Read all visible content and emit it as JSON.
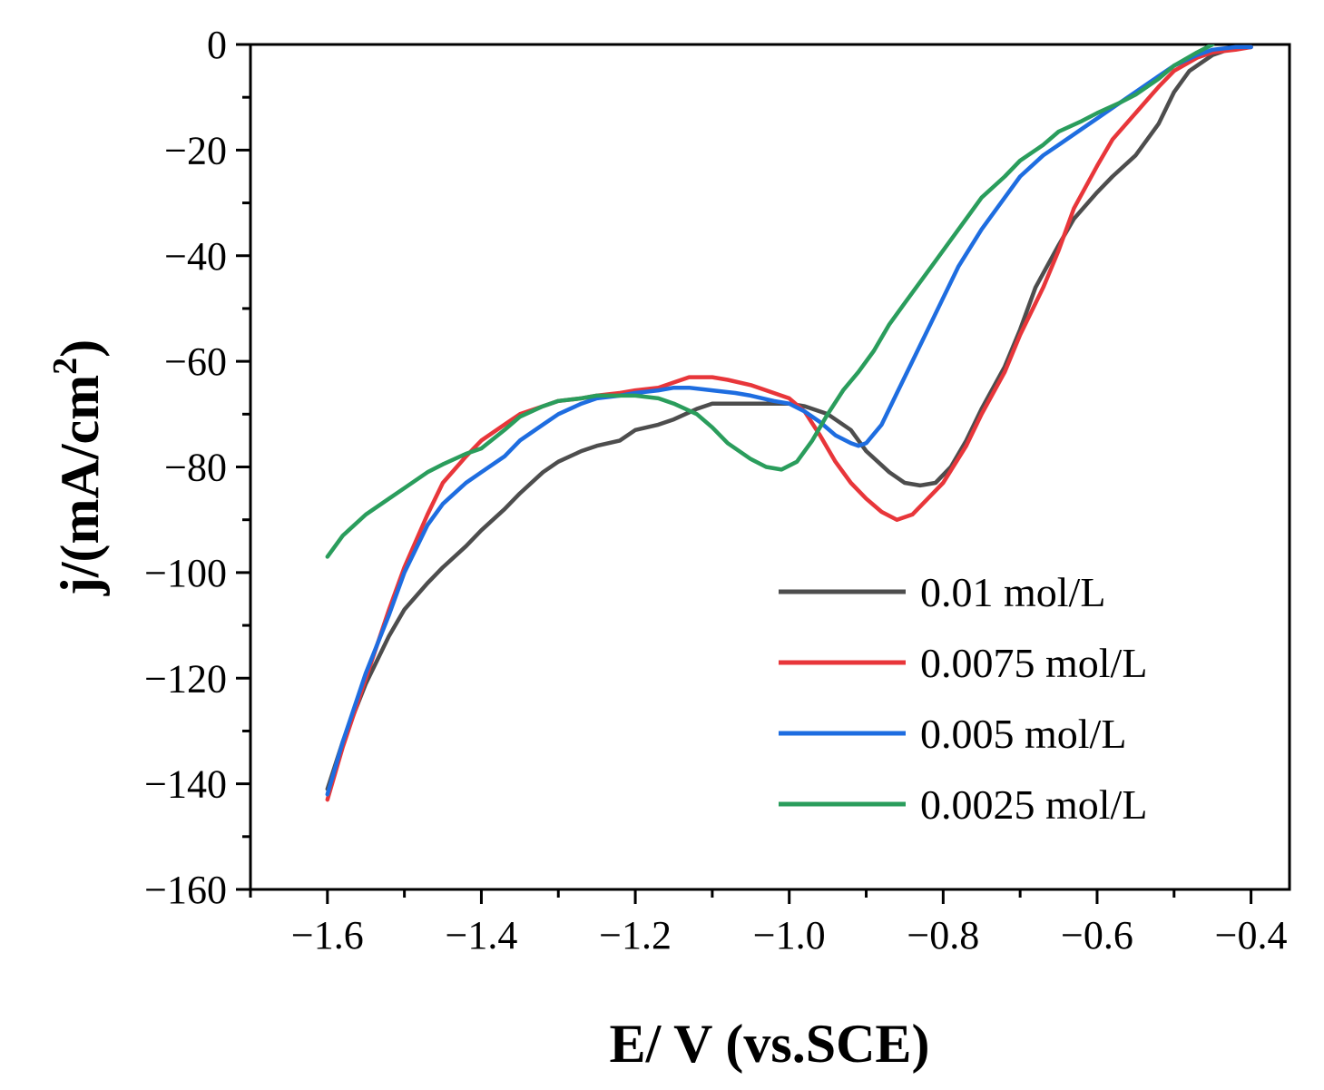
{
  "chart_data": {
    "type": "line",
    "title": "",
    "xlabel": "E/ V (vs.SCE)",
    "ylabel_main": "j/(mA/cm",
    "ylabel_sup": "2",
    "ylabel_close": ")",
    "xlim": [
      -1.7,
      -0.35
    ],
    "ylim": [
      -160,
      0
    ],
    "xticks": [
      -1.6,
      -1.4,
      -1.2,
      -1.0,
      -0.8,
      -0.6,
      -0.4
    ],
    "xtick_labels": [
      "−1.6",
      "−1.4",
      "−1.2",
      "−1.0",
      "−0.8",
      "−0.6",
      "−0.4"
    ],
    "yticks": [
      0,
      -20,
      -40,
      -60,
      -80,
      -100,
      -120,
      -140,
      -160
    ],
    "ytick_labels": [
      "0",
      "−20",
      "−40",
      "−60",
      "−80",
      "−100",
      "−120",
      "−140",
      "−160"
    ],
    "legend_position": "bottom-right",
    "series": [
      {
        "name": "0.01 mol/L",
        "color": "#4d4d4d",
        "x": [
          -1.6,
          -1.58,
          -1.55,
          -1.52,
          -1.5,
          -1.47,
          -1.45,
          -1.42,
          -1.4,
          -1.37,
          -1.35,
          -1.32,
          -1.3,
          -1.27,
          -1.25,
          -1.22,
          -1.2,
          -1.17,
          -1.15,
          -1.12,
          -1.1,
          -1.07,
          -1.05,
          -1.02,
          -1.0,
          -0.98,
          -0.95,
          -0.92,
          -0.9,
          -0.87,
          -0.85,
          -0.83,
          -0.81,
          -0.79,
          -0.77,
          -0.75,
          -0.72,
          -0.7,
          -0.68,
          -0.65,
          -0.63,
          -0.6,
          -0.58,
          -0.55,
          -0.52,
          -0.5,
          -0.48,
          -0.45,
          -0.43,
          -0.41,
          -0.4
        ],
        "y": [
          -141,
          -132,
          -121,
          -112,
          -107,
          -102,
          -99,
          -95,
          -92,
          -88,
          -85,
          -81,
          -79,
          -77,
          -76,
          -75,
          -73,
          -72,
          -71,
          -69,
          -68,
          -68,
          -68,
          -68,
          -68,
          -68.5,
          -70,
          -73,
          -77,
          -81,
          -83,
          -83.5,
          -83,
          -80,
          -75,
          -69,
          -61,
          -54,
          -46,
          -38,
          -33,
          -28,
          -25,
          -21,
          -15,
          -9,
          -5,
          -2,
          -1,
          -0.5,
          -0.5
        ]
      },
      {
        "name": "0.0075 mol/L",
        "color": "#e8363a",
        "x": [
          -1.6,
          -1.58,
          -1.55,
          -1.52,
          -1.5,
          -1.47,
          -1.45,
          -1.42,
          -1.4,
          -1.37,
          -1.35,
          -1.32,
          -1.3,
          -1.27,
          -1.25,
          -1.22,
          -1.2,
          -1.17,
          -1.15,
          -1.13,
          -1.1,
          -1.08,
          -1.05,
          -1.02,
          -1.0,
          -0.98,
          -0.96,
          -0.94,
          -0.92,
          -0.9,
          -0.88,
          -0.86,
          -0.84,
          -0.82,
          -0.8,
          -0.77,
          -0.75,
          -0.72,
          -0.7,
          -0.67,
          -0.65,
          -0.63,
          -0.6,
          -0.58,
          -0.55,
          -0.52,
          -0.5,
          -0.47,
          -0.45,
          -0.42,
          -0.4
        ],
        "y": [
          -143,
          -133,
          -120,
          -107,
          -99,
          -89,
          -83,
          -78,
          -75,
          -72,
          -70,
          -68.5,
          -67.5,
          -67,
          -66.5,
          -66,
          -65.5,
          -65,
          -64,
          -63,
          -63,
          -63.5,
          -64.5,
          -66,
          -67,
          -69.5,
          -74,
          -79,
          -83,
          -86,
          -88.5,
          -90,
          -89,
          -86,
          -83,
          -76,
          -70,
          -62,
          -55,
          -46,
          -39,
          -31,
          -23,
          -18,
          -13,
          -8,
          -5,
          -2.5,
          -1.5,
          -1,
          -0.5
        ]
      },
      {
        "name": "0.005 mol/L",
        "color": "#1e6de0",
        "x": [
          -1.6,
          -1.58,
          -1.55,
          -1.52,
          -1.5,
          -1.47,
          -1.45,
          -1.42,
          -1.4,
          -1.37,
          -1.35,
          -1.32,
          -1.3,
          -1.27,
          -1.25,
          -1.22,
          -1.2,
          -1.17,
          -1.15,
          -1.13,
          -1.1,
          -1.07,
          -1.05,
          -1.02,
          -1.0,
          -0.98,
          -0.96,
          -0.94,
          -0.92,
          -0.91,
          -0.9,
          -0.88,
          -0.86,
          -0.84,
          -0.82,
          -0.8,
          -0.78,
          -0.75,
          -0.72,
          -0.7,
          -0.67,
          -0.65,
          -0.62,
          -0.6,
          -0.57,
          -0.55,
          -0.52,
          -0.5,
          -0.47,
          -0.45,
          -0.42,
          -0.4
        ],
        "y": [
          -142,
          -132,
          -119,
          -108,
          -100,
          -91,
          -87,
          -83,
          -81,
          -78,
          -75,
          -72,
          -70,
          -68,
          -67,
          -66.5,
          -66,
          -65.5,
          -65,
          -65,
          -65.5,
          -66,
          -66.5,
          -67.5,
          -68,
          -69.5,
          -71.5,
          -74,
          -75.5,
          -76,
          -75.5,
          -72,
          -66,
          -60,
          -54,
          -48,
          -42,
          -35,
          -29,
          -25,
          -21,
          -19,
          -16,
          -14,
          -11,
          -9,
          -6,
          -4,
          -2,
          -1,
          -0.5,
          -0.5
        ]
      },
      {
        "name": "0.0025 mol/L",
        "color": "#2a9d5c",
        "x": [
          -1.6,
          -1.58,
          -1.55,
          -1.52,
          -1.5,
          -1.47,
          -1.45,
          -1.42,
          -1.4,
          -1.37,
          -1.35,
          -1.32,
          -1.3,
          -1.27,
          -1.25,
          -1.22,
          -1.2,
          -1.17,
          -1.15,
          -1.12,
          -1.1,
          -1.08,
          -1.05,
          -1.03,
          -1.01,
          -0.99,
          -0.97,
          -0.95,
          -0.93,
          -0.91,
          -0.89,
          -0.87,
          -0.85,
          -0.83,
          -0.81,
          -0.79,
          -0.77,
          -0.75,
          -0.72,
          -0.7,
          -0.67,
          -0.65,
          -0.62,
          -0.6,
          -0.57,
          -0.55,
          -0.52,
          -0.5,
          -0.47,
          -0.45
        ],
        "y": [
          -97,
          -93,
          -89,
          -86,
          -84,
          -81,
          -79.5,
          -77.5,
          -76.5,
          -73,
          -70.5,
          -68.5,
          -67.5,
          -67,
          -66.5,
          -66.5,
          -66.5,
          -67,
          -68,
          -70,
          -72.5,
          -75.5,
          -78.5,
          -80,
          -80.5,
          -79,
          -75,
          -70,
          -65.5,
          -62,
          -58,
          -53,
          -49,
          -45,
          -41,
          -37,
          -33,
          -29,
          -25,
          -22,
          -19,
          -16.5,
          -14.5,
          -13,
          -11,
          -9.5,
          -6.5,
          -4,
          -1.5,
          0
        ]
      }
    ]
  }
}
